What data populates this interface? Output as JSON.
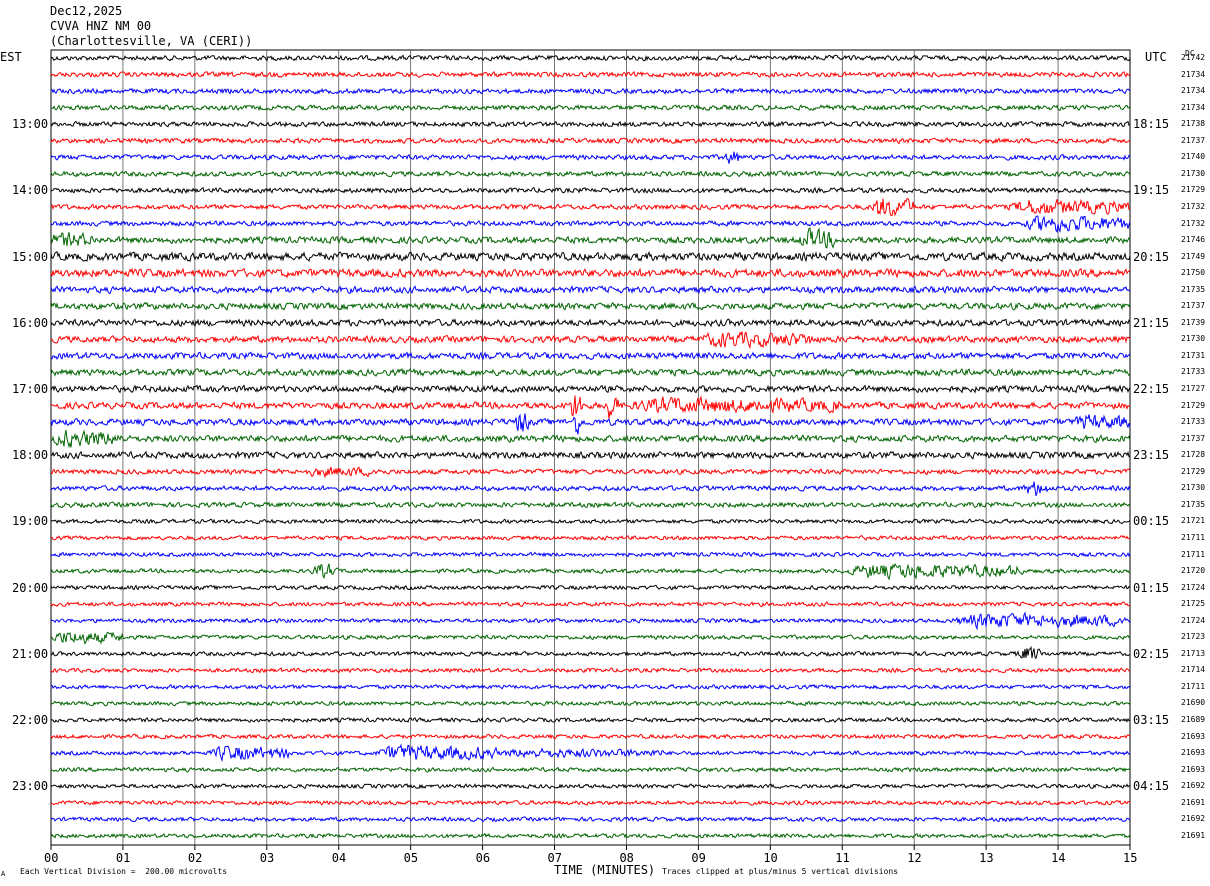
{
  "header": {
    "date": "Dec12,2025",
    "station": "CVVA HNZ NM 00",
    "location": "(Charlottesville, VA (CERI))"
  },
  "left_axis_title": "EST",
  "right_axis_title": "UTC",
  "dc_title": "DC",
  "footer": {
    "corner_mark": "A",
    "scale_note": "Each Vertical Division =  200.00 microvolts",
    "clip_note": "Traces clipped at plus/minus 5 vertical divisions"
  },
  "chart_data": {
    "type": "line",
    "title": "CVVA HNZ NM 00",
    "xlabel": "TIME (MINUTES)",
    "xlim": [
      0,
      15
    ],
    "x_ticks": [
      "00",
      "01",
      "02",
      "03",
      "04",
      "05",
      "06",
      "07",
      "08",
      "09",
      "10",
      "11",
      "12",
      "13",
      "14",
      "15"
    ],
    "trace_colors": [
      "#000000",
      "#ff0000",
      "#0000ff",
      "#006400"
    ],
    "traces_per_hour": 4,
    "minutes_per_trace": 15,
    "trace_count": 48,
    "est_hour_labels": [
      "13:00",
      "14:00",
      "15:00",
      "16:00",
      "17:00",
      "18:00",
      "19:00",
      "20:00",
      "21:00",
      "22:00",
      "23:00"
    ],
    "utc_hour_labels": [
      "18:15",
      "19:15",
      "20:15",
      "21:15",
      "22:15",
      "23:15",
      "00:15",
      "01:15",
      "02:15",
      "03:15",
      "04:15"
    ],
    "dc_offsets": [
      21742,
      21734,
      21734,
      21734,
      21738,
      21737,
      21740,
      21730,
      21729,
      21732,
      21732,
      21746,
      21749,
      21750,
      21735,
      21737,
      21739,
      21730,
      21731,
      21733,
      21727,
      21729,
      21733,
      21737,
      21728,
      21729,
      21730,
      21735,
      21721,
      21711,
      21711,
      21720,
      21724,
      21725,
      21724,
      21723,
      21713,
      21714,
      21711,
      21690,
      21689,
      21693,
      21693,
      21693,
      21692,
      21691,
      21692,
      21691
    ],
    "noise_level": [
      3,
      3,
      3,
      3,
      3,
      3,
      3,
      3,
      3,
      3,
      3,
      4,
      5,
      5,
      4,
      4,
      4,
      4,
      4,
      4,
      4,
      4,
      4,
      4,
      4,
      3,
      3,
      3,
      2.5,
      2.5,
      2.5,
      2.5,
      2.5,
      2.5,
      2.5,
      2.5,
      2.5,
      2.5,
      2.5,
      2.5,
      2.5,
      2.5,
      2.5,
      2.5,
      2.5,
      2.5,
      2.5,
      2.5
    ],
    "events": [
      {
        "trace": 6,
        "start": 9.35,
        "end": 9.6,
        "amp": 7
      },
      {
        "trace": 9,
        "start": 11.4,
        "end": 12.0,
        "amp": 12
      },
      {
        "trace": 9,
        "start": 13.3,
        "end": 15.0,
        "amp": 8
      },
      {
        "trace": 10,
        "start": 13.5,
        "end": 15.0,
        "amp": 9
      },
      {
        "trace": 11,
        "start": 0.0,
        "end": 0.6,
        "amp": 7
      },
      {
        "trace": 11,
        "start": 10.4,
        "end": 10.9,
        "amp": 11
      },
      {
        "trace": 17,
        "start": 9.0,
        "end": 10.6,
        "amp": 7
      },
      {
        "trace": 21,
        "start": 7.2,
        "end": 7.4,
        "amp": 18
      },
      {
        "trace": 21,
        "start": 7.7,
        "end": 7.9,
        "amp": 18
      },
      {
        "trace": 21,
        "start": 8.0,
        "end": 11.0,
        "amp": 7
      },
      {
        "trace": 22,
        "start": 6.45,
        "end": 6.65,
        "amp": 14
      },
      {
        "trace": 22,
        "start": 7.25,
        "end": 7.4,
        "amp": 14
      },
      {
        "trace": 22,
        "start": 14.2,
        "end": 15.0,
        "amp": 7
      },
      {
        "trace": 23,
        "start": 0.0,
        "end": 1.0,
        "amp": 8
      },
      {
        "trace": 25,
        "start": 3.5,
        "end": 4.6,
        "amp": 4
      },
      {
        "trace": 26,
        "start": 13.5,
        "end": 13.9,
        "amp": 8
      },
      {
        "trace": 31,
        "start": 3.6,
        "end": 4.0,
        "amp": 7
      },
      {
        "trace": 31,
        "start": 11.0,
        "end": 13.5,
        "amp": 8
      },
      {
        "trace": 34,
        "start": 12.5,
        "end": 15.0,
        "amp": 8
      },
      {
        "trace": 35,
        "start": 0.0,
        "end": 1.0,
        "amp": 7
      },
      {
        "trace": 36,
        "start": 13.4,
        "end": 13.8,
        "amp": 8
      },
      {
        "trace": 42,
        "start": 2.2,
        "end": 3.3,
        "amp": 8
      },
      {
        "trace": 42,
        "start": 4.5,
        "end": 6.2,
        "amp": 9
      },
      {
        "trace": 42,
        "start": 6.2,
        "end": 8.5,
        "amp": 4
      }
    ]
  }
}
